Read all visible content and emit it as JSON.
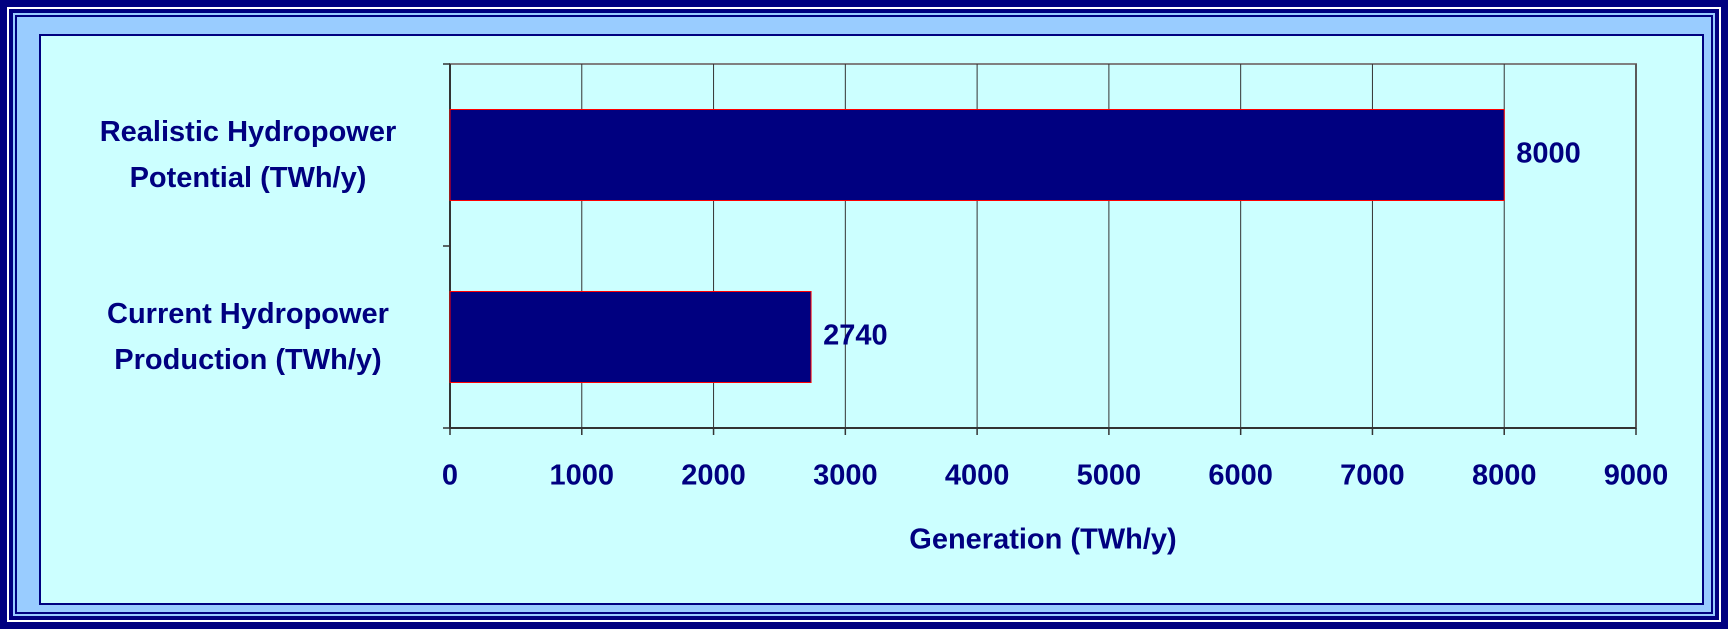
{
  "chart_data": {
    "type": "bar",
    "orientation": "horizontal",
    "categories": [
      "Realistic Hydropower Potential (TWh/y)",
      "Current Hydropower Production (TWh/y)"
    ],
    "values": [
      8000,
      2740
    ],
    "color": "#000080",
    "xlabel": "Generation (TWh/y)",
    "xlim": [
      0,
      9000
    ],
    "xticks": [
      0,
      1000,
      2000,
      3000,
      4000,
      5000,
      6000,
      7000,
      8000,
      9000
    ],
    "grid": true
  }
}
